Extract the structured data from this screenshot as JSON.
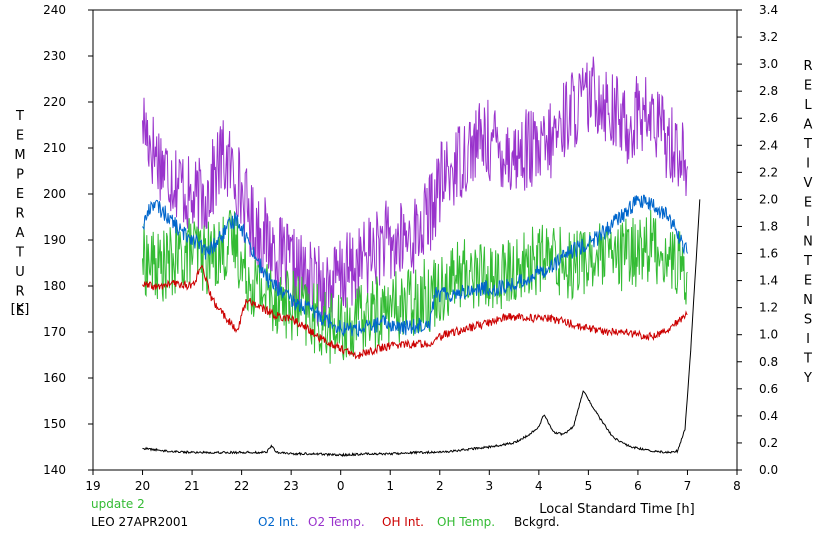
{
  "chart_data": {
    "type": "line",
    "update_label": "update 2",
    "station_date": "LEO 27APR2001",
    "xlabel": "Local Standard Time [h]",
    "ylabel_left": "TEMPERATURE",
    "ylabel_left_unit": "[K]",
    "ylabel_right": "RELATIVE INTENSITY",
    "xlim": [
      19,
      32
    ],
    "x_tick_values": [
      19,
      20,
      21,
      22,
      23,
      24,
      25,
      26,
      27,
      28,
      29,
      30,
      31,
      32
    ],
    "x_tick_labels": [
      "19",
      "20",
      "21",
      "22",
      "23",
      "0",
      "1",
      "2",
      "3",
      "4",
      "5",
      "6",
      "7",
      "8"
    ],
    "ylim_left": [
      140,
      240
    ],
    "y_left_ticks": [
      "140",
      "150",
      "160",
      "170",
      "180",
      "190",
      "200",
      "210",
      "220",
      "230",
      "240"
    ],
    "ylim_right": [
      0.0,
      3.4
    ],
    "y_right_ticks": [
      "0.0",
      "0.2",
      "0.4",
      "0.6",
      "0.8",
      "1.0",
      "1.2",
      "1.4",
      "1.6",
      "1.8",
      "2.0",
      "2.2",
      "2.4",
      "2.6",
      "2.8",
      "3.0",
      "3.2",
      "3.4"
    ],
    "grid": false,
    "legend": [
      {
        "name": "O2 Int.",
        "color": "#0066cc"
      },
      {
        "name": "O2 Temp.",
        "color": "#9933cc"
      },
      {
        "name": "OH Int.",
        "color": "#cc0000"
      },
      {
        "name": "OH Temp.",
        "color": "#33bb33"
      },
      {
        "name": "Bckgrd.",
        "color": "#000000"
      }
    ],
    "series": [
      {
        "name": "O2 Temp.",
        "axis": "left",
        "color": "#9933cc",
        "noise": 9,
        "x": [
          20.0,
          20.2,
          20.5,
          20.8,
          21.0,
          21.3,
          21.6,
          21.9,
          22.0,
          22.2,
          22.5,
          22.8,
          23.0,
          23.3,
          23.5,
          23.8,
          24.0,
          24.3,
          24.6,
          24.9,
          25.0,
          25.3,
          25.6,
          25.8,
          26.0,
          26.3,
          26.6,
          26.9,
          27.2,
          27.5,
          27.8,
          28.0,
          28.3,
          28.6,
          28.9,
          29.2,
          29.5,
          29.8,
          30.0,
          30.3,
          30.6,
          30.8,
          31.0
        ],
        "y": [
          216,
          210,
          205,
          202,
          198,
          200,
          208,
          204,
          200,
          194,
          190,
          186,
          184,
          182,
          180,
          180,
          182,
          184,
          187,
          190,
          188,
          190,
          192,
          196,
          202,
          206,
          210,
          212,
          210,
          208,
          210,
          208,
          212,
          218,
          220,
          222,
          218,
          214,
          218,
          216,
          212,
          210,
          206
        ]
      },
      {
        "name": "OH Temp.",
        "axis": "left",
        "color": "#33bb33",
        "noise": 8,
        "x": [
          20.0,
          20.3,
          20.6,
          21.0,
          21.3,
          21.6,
          21.9,
          22.0,
          22.3,
          22.6,
          23.0,
          23.3,
          23.6,
          24.0,
          24.3,
          24.6,
          25.0,
          25.3,
          25.6,
          25.8,
          26.0,
          26.3,
          26.6,
          27.0,
          27.3,
          27.6,
          28.0,
          28.3,
          28.6,
          29.0,
          29.3,
          29.6,
          30.0,
          30.3,
          30.6,
          30.8,
          31.0
        ],
        "y": [
          186,
          184,
          185,
          188,
          186,
          188,
          190,
          184,
          180,
          178,
          176,
          174,
          172,
          170,
          172,
          174,
          175,
          176,
          178,
          178,
          180,
          182,
          183,
          182,
          182,
          184,
          186,
          186,
          185,
          186,
          186,
          186,
          188,
          189,
          186,
          185,
          183
        ]
      },
      {
        "name": "O2 Int.",
        "axis": "right",
        "color": "#0066cc",
        "noise": 0.06,
        "x": [
          20.0,
          20.2,
          20.5,
          20.8,
          21.0,
          21.3,
          21.6,
          21.9,
          22.2,
          22.5,
          22.8,
          23.0,
          23.3,
          23.6,
          23.9,
          24.0,
          24.3,
          24.6,
          24.9,
          25.2,
          25.5,
          25.8,
          25.9,
          26.2,
          26.5,
          26.8,
          27.1,
          27.4,
          27.7,
          28.0,
          28.3,
          28.6,
          28.9,
          29.2,
          29.5,
          29.8,
          30.0,
          30.3,
          30.6,
          30.8,
          31.0
        ],
        "y": [
          1.8,
          1.98,
          1.88,
          1.75,
          1.72,
          1.6,
          1.73,
          1.87,
          1.64,
          1.42,
          1.32,
          1.25,
          1.2,
          1.14,
          1.08,
          1.05,
          1.04,
          1.06,
          1.09,
          1.05,
          1.06,
          1.1,
          1.3,
          1.3,
          1.32,
          1.34,
          1.34,
          1.36,
          1.4,
          1.46,
          1.52,
          1.6,
          1.66,
          1.72,
          1.82,
          1.92,
          2.0,
          1.95,
          1.88,
          1.75,
          1.6
        ]
      },
      {
        "name": "OH Int.",
        "axis": "right",
        "color": "#cc0000",
        "noise": 0.03,
        "x": [
          20.0,
          20.3,
          20.6,
          21.0,
          21.2,
          21.4,
          21.7,
          21.9,
          22.1,
          22.4,
          22.7,
          23.0,
          23.3,
          23.6,
          24.0,
          24.3,
          24.6,
          24.9,
          25.2,
          25.5,
          25.8,
          26.1,
          26.4,
          26.7,
          27.0,
          27.3,
          27.6,
          27.9,
          28.2,
          28.5,
          28.8,
          29.1,
          29.4,
          29.7,
          30.0,
          30.3,
          30.6,
          30.8,
          31.0
        ],
        "y": [
          1.37,
          1.35,
          1.38,
          1.36,
          1.5,
          1.26,
          1.12,
          1.02,
          1.26,
          1.2,
          1.14,
          1.12,
          1.05,
          0.97,
          0.9,
          0.84,
          0.88,
          0.91,
          0.93,
          0.93,
          0.94,
          1.0,
          1.03,
          1.06,
          1.09,
          1.13,
          1.13,
          1.12,
          1.12,
          1.1,
          1.06,
          1.04,
          1.02,
          1.02,
          1.0,
          0.99,
          1.04,
          1.1,
          1.15
        ]
      },
      {
        "name": "Bckgrd.",
        "axis": "right",
        "color": "#000000",
        "noise": 0.008,
        "x": [
          20.0,
          20.5,
          21.0,
          21.5,
          22.0,
          22.5,
          22.6,
          22.7,
          23.0,
          23.5,
          24.0,
          24.5,
          25.0,
          25.5,
          26.0,
          26.5,
          27.0,
          27.5,
          27.8,
          28.0,
          28.1,
          28.3,
          28.5,
          28.7,
          28.9,
          29.0,
          29.2,
          29.5,
          29.8,
          30.0,
          30.3,
          30.6,
          30.8,
          30.95,
          31.05,
          31.15,
          31.25
        ],
        "y": [
          0.16,
          0.14,
          0.13,
          0.13,
          0.13,
          0.13,
          0.18,
          0.13,
          0.12,
          0.12,
          0.11,
          0.12,
          0.12,
          0.13,
          0.13,
          0.15,
          0.17,
          0.2,
          0.26,
          0.32,
          0.41,
          0.28,
          0.26,
          0.32,
          0.59,
          0.52,
          0.4,
          0.24,
          0.18,
          0.16,
          0.14,
          0.13,
          0.14,
          0.3,
          0.8,
          1.4,
          2.0
        ]
      }
    ]
  }
}
